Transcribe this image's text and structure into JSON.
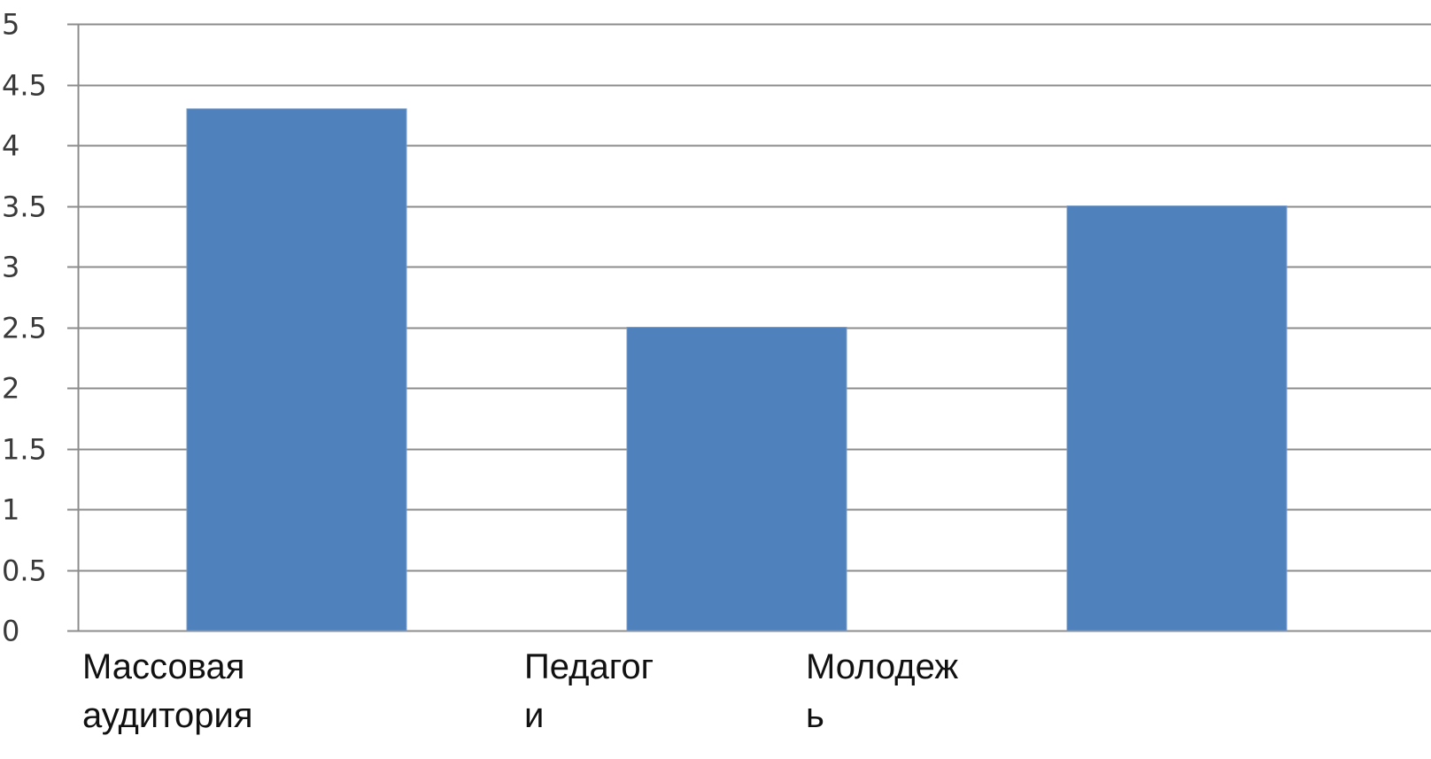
{
  "chart_data": {
    "type": "bar",
    "categories": [
      [
        "Массовая",
        "аудитория"
      ],
      [
        "Педагог",
        "и"
      ],
      [
        "Молодеж",
        "ь"
      ]
    ],
    "values": [
      4.3,
      2.5,
      3.5
    ],
    "y_ticks": [
      "0",
      "0.5",
      "1",
      "1.5",
      "2",
      "2.5",
      "3",
      "3.5",
      "4",
      "4.5",
      "5"
    ],
    "ylim": [
      0,
      5
    ],
    "grid": true,
    "title": "",
    "xlabel": "",
    "ylabel": "",
    "colors": {
      "bar": "#4f81bd",
      "grid": "#8c8c8c",
      "axis": "#8c8c8c"
    }
  }
}
